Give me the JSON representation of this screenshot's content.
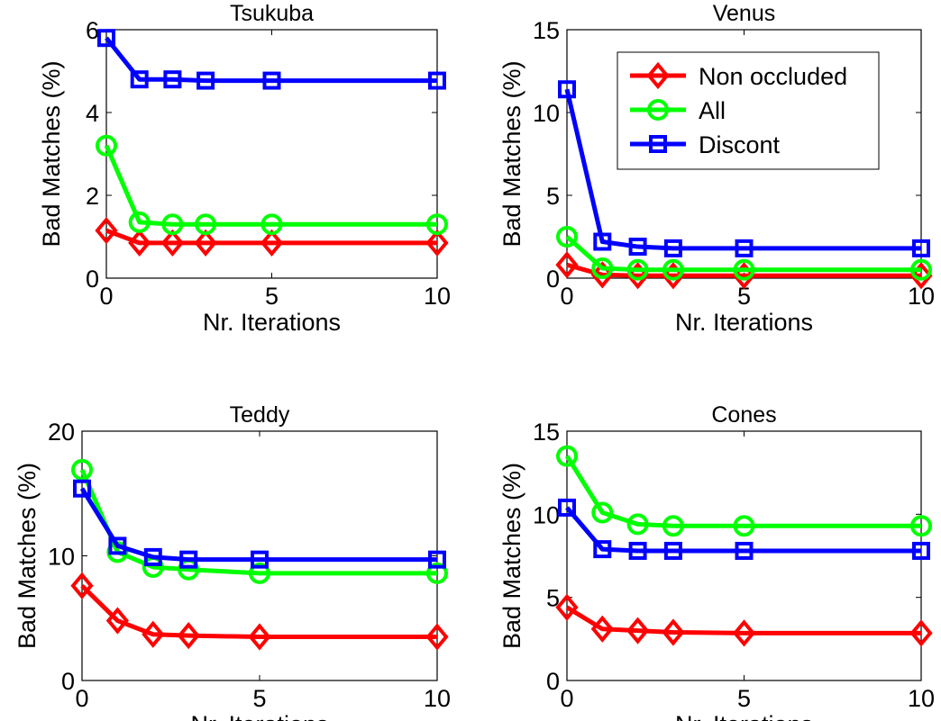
{
  "chart_data": [
    {
      "type": "line",
      "title": "Tsukuba",
      "xlabel": "Nr. Iterations",
      "ylabel": "Bad Matches (%)",
      "x": [
        0,
        1,
        2,
        3,
        5,
        10
      ],
      "xlim": [
        0,
        10
      ],
      "ylim": [
        0,
        6
      ],
      "xticks": [
        0,
        5,
        10
      ],
      "yticks": [
        0,
        2,
        4,
        6
      ],
      "series": [
        {
          "name": "Non occluded",
          "color": "#ff0000",
          "marker": "diamond",
          "values": [
            1.15,
            0.85,
            0.85,
            0.85,
            0.85,
            0.85
          ]
        },
        {
          "name": "All",
          "color": "#00ff00",
          "marker": "circle",
          "values": [
            3.2,
            1.35,
            1.3,
            1.3,
            1.3,
            1.3
          ]
        },
        {
          "name": "Discont",
          "color": "#0000ff",
          "marker": "square",
          "values": [
            5.8,
            4.8,
            4.8,
            4.77,
            4.77,
            4.77
          ]
        }
      ]
    },
    {
      "type": "line",
      "title": "Venus",
      "xlabel": "Nr. Iterations",
      "ylabel": "Bad Matches (%)",
      "x": [
        0,
        1,
        2,
        3,
        5,
        10
      ],
      "xlim": [
        0,
        10
      ],
      "ylim": [
        0,
        15
      ],
      "xticks": [
        0,
        5,
        10
      ],
      "yticks": [
        0,
        5,
        10,
        15
      ],
      "legend": {
        "position": "top-right",
        "entries": [
          "Non occluded",
          "All",
          "Discont"
        ]
      },
      "series": [
        {
          "name": "Non occluded",
          "color": "#ff0000",
          "marker": "diamond",
          "values": [
            0.8,
            0.2,
            0.15,
            0.15,
            0.15,
            0.15
          ]
        },
        {
          "name": "All",
          "color": "#00ff00",
          "marker": "circle",
          "values": [
            2.5,
            0.6,
            0.5,
            0.5,
            0.5,
            0.5
          ]
        },
        {
          "name": "Discont",
          "color": "#0000ff",
          "marker": "square",
          "values": [
            11.4,
            2.2,
            1.9,
            1.8,
            1.8,
            1.8
          ]
        }
      ]
    },
    {
      "type": "line",
      "title": "Teddy",
      "xlabel": "Nr. Iterations",
      "ylabel": "Bad Matches (%)",
      "x": [
        0,
        1,
        2,
        3,
        5,
        10
      ],
      "xlim": [
        0,
        10
      ],
      "ylim": [
        0,
        20
      ],
      "xticks": [
        0,
        5,
        10
      ],
      "yticks": [
        0,
        10,
        20
      ],
      "series": [
        {
          "name": "Non occluded",
          "color": "#ff0000",
          "marker": "diamond",
          "values": [
            7.6,
            4.8,
            3.7,
            3.6,
            3.5,
            3.5
          ]
        },
        {
          "name": "All",
          "color": "#00ff00",
          "marker": "circle",
          "values": [
            16.9,
            10.3,
            9.1,
            8.9,
            8.6,
            8.6
          ]
        },
        {
          "name": "Discont",
          "color": "#0000ff",
          "marker": "square",
          "values": [
            15.4,
            10.8,
            9.9,
            9.7,
            9.7,
            9.7
          ]
        }
      ]
    },
    {
      "type": "line",
      "title": "Cones",
      "xlabel": "Nr. Iterations",
      "ylabel": "Bad Matches (%)",
      "x": [
        0,
        1,
        2,
        3,
        5,
        10
      ],
      "xlim": [
        0,
        10
      ],
      "ylim": [
        0,
        15
      ],
      "xticks": [
        0,
        5,
        10
      ],
      "yticks": [
        0,
        5,
        10,
        15
      ],
      "series": [
        {
          "name": "Non occluded",
          "color": "#ff0000",
          "marker": "diamond",
          "values": [
            4.4,
            3.1,
            3.0,
            2.9,
            2.85,
            2.85
          ]
        },
        {
          "name": "All",
          "color": "#00ff00",
          "marker": "circle",
          "values": [
            13.5,
            10.1,
            9.4,
            9.3,
            9.3,
            9.3
          ]
        },
        {
          "name": "Discont",
          "color": "#0000ff",
          "marker": "square",
          "values": [
            10.4,
            7.9,
            7.8,
            7.8,
            7.8,
            7.8
          ]
        }
      ]
    }
  ]
}
